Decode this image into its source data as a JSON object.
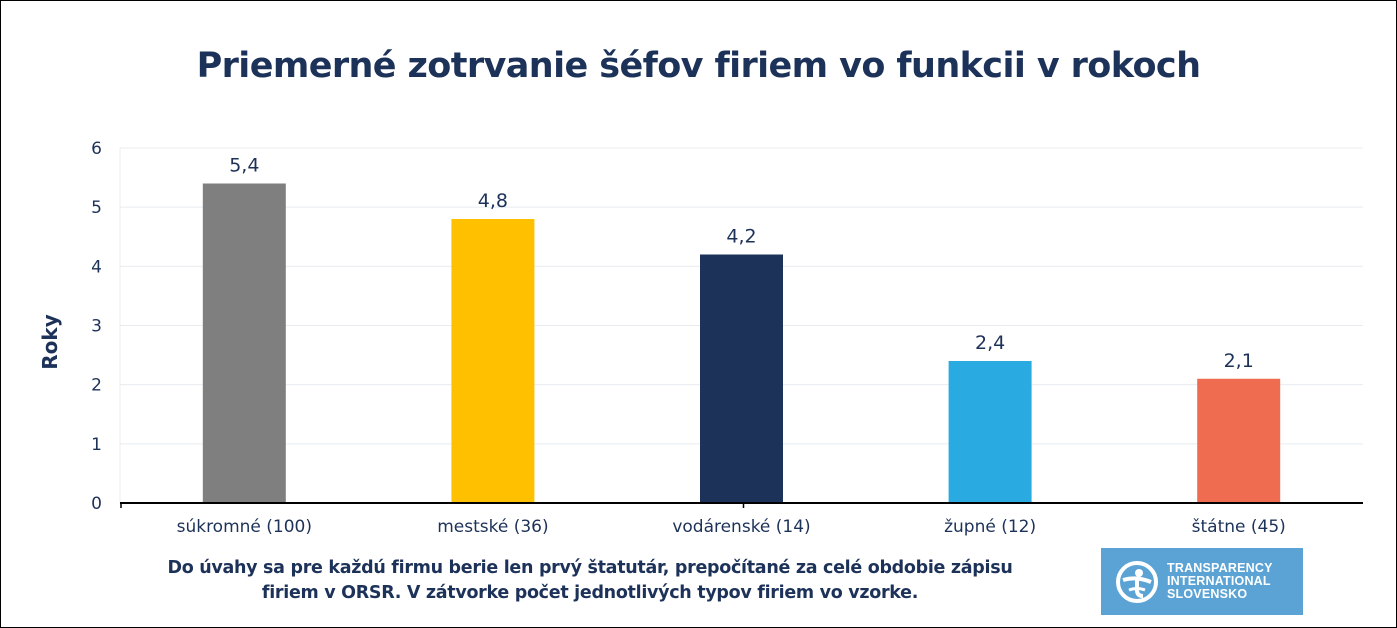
{
  "chart_data": {
    "type": "bar",
    "title": "Priemerné zotrvanie šéfov firiem vo funkcii v rokoch",
    "xlabel": "",
    "ylabel": "Roky",
    "ylim": [
      0,
      6
    ],
    "yticks": [
      "0",
      "1",
      "2",
      "3",
      "4",
      "5",
      "6"
    ],
    "grid": true,
    "legend": "none",
    "categories": [
      "súkromné (100)",
      "mestské (36)",
      "vodárenské (14)",
      "župné (12)",
      "štátne (45)"
    ],
    "values": [
      5.4,
      4.8,
      4.2,
      2.4,
      2.1
    ],
    "data_labels": [
      "5,4",
      "4,8",
      "4,2",
      "2,4",
      "2,1"
    ],
    "colors": [
      "#7f7f7f",
      "#ffc000",
      "#1d3259",
      "#29abe2",
      "#ef6c50"
    ]
  },
  "footnote": {
    "line1": "Do úvahy sa pre každú firmu berie len prvý štatutár, prepočítané za celé obdobie zápisu",
    "line2": "firiem v ORSR. V zátvorke počet jednotlivých typov firiem vo vzorke."
  },
  "logo": {
    "icon": "transparency-international-globe-icon",
    "line1": "TRANSPARENCY",
    "line2": "INTERNATIONAL",
    "line3": "SLOVENSKO",
    "background": "#5ba3d4"
  },
  "theme": {
    "text_color": "#1d3259",
    "grid_color": "#e8ecf0",
    "axis_color": "#000000"
  }
}
